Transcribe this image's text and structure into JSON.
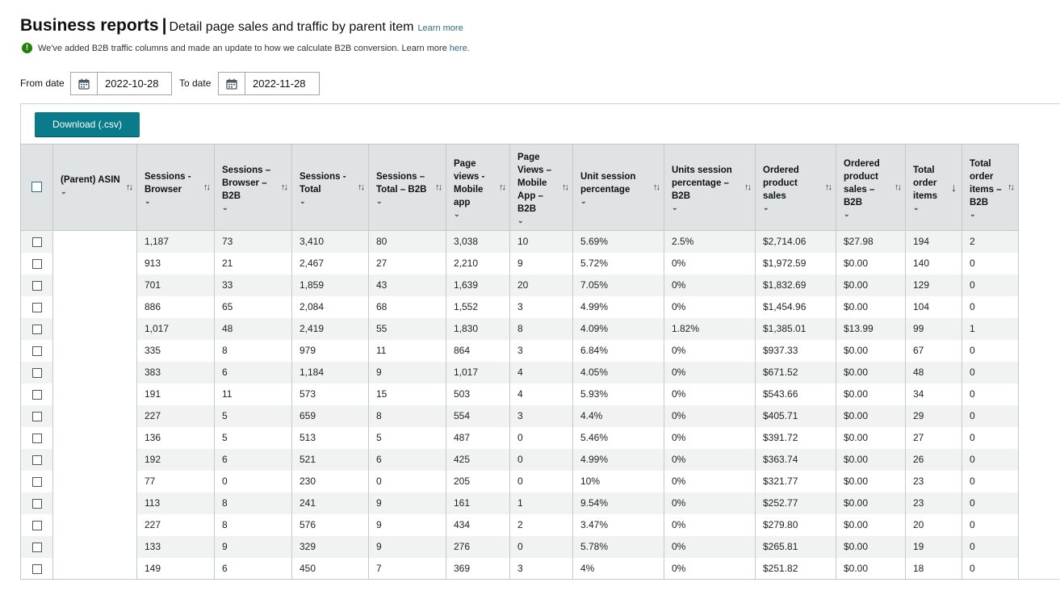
{
  "header": {
    "title": "Business reports",
    "separator": "|",
    "subtitle": "Detail page sales and traffic by parent item",
    "learn_more": "Learn more"
  },
  "notice": {
    "text": "We've added B2B traffic columns and made an update to how we calculate B2B conversion. Learn more",
    "link": "here."
  },
  "filters": {
    "from_label": "From date",
    "from_value": "2022-10-28",
    "to_label": "To date",
    "to_value": "2022-11-28"
  },
  "download_label": "Download (.csv)",
  "columns": [
    {
      "key": "asin",
      "line1": "(Parent) ASIN",
      "extra": []
    },
    {
      "key": "sessions_browser",
      "lines": [
        "Sessions -",
        "Browser"
      ]
    },
    {
      "key": "sessions_browser_b2b",
      "lines": [
        "Sessions –",
        "Browser –",
        "B2B"
      ]
    },
    {
      "key": "sessions_total",
      "lines": [
        "Sessions -",
        "Total"
      ]
    },
    {
      "key": "sessions_total_b2b",
      "lines": [
        "Sessions –",
        "Total – B2B"
      ]
    },
    {
      "key": "page_views_mobile",
      "lines": [
        "Page",
        "views -",
        "Mobile",
        "app"
      ]
    },
    {
      "key": "page_views_mobile_b2b",
      "lines": [
        "Page",
        "Views –",
        "Mobile",
        "App –",
        "B2B"
      ]
    },
    {
      "key": "unit_session_pct",
      "lines": [
        "Unit session",
        "percentage"
      ]
    },
    {
      "key": "unit_session_pct_b2b",
      "lines": [
        "Units session",
        "percentage –",
        "B2B"
      ]
    },
    {
      "key": "ordered_sales",
      "lines": [
        "Ordered",
        "product",
        "sales"
      ]
    },
    {
      "key": "ordered_sales_b2b",
      "lines": [
        "Ordered",
        "product",
        "sales –",
        "B2B"
      ]
    },
    {
      "key": "total_order_items",
      "lines": [
        "Total",
        "order",
        "items"
      ]
    },
    {
      "key": "total_order_items_b2b",
      "lines": [
        "Total",
        "order",
        "items –",
        "B2B"
      ]
    }
  ],
  "rows": [
    [
      "1,187",
      "73",
      "3,410",
      "80",
      "3,038",
      "10",
      "5.69%",
      "2.5%",
      "$2,714.06",
      "$27.98",
      "194",
      "2"
    ],
    [
      "913",
      "21",
      "2,467",
      "27",
      "2,210",
      "9",
      "5.72%",
      "0%",
      "$1,972.59",
      "$0.00",
      "140",
      "0"
    ],
    [
      "701",
      "33",
      "1,859",
      "43",
      "1,639",
      "20",
      "7.05%",
      "0%",
      "$1,832.69",
      "$0.00",
      "129",
      "0"
    ],
    [
      "886",
      "65",
      "2,084",
      "68",
      "1,552",
      "3",
      "4.99%",
      "0%",
      "$1,454.96",
      "$0.00",
      "104",
      "0"
    ],
    [
      "1,017",
      "48",
      "2,419",
      "55",
      "1,830",
      "8",
      "4.09%",
      "1.82%",
      "$1,385.01",
      "$13.99",
      "99",
      "1"
    ],
    [
      "335",
      "8",
      "979",
      "11",
      "864",
      "3",
      "6.84%",
      "0%",
      "$937.33",
      "$0.00",
      "67",
      "0"
    ],
    [
      "383",
      "6",
      "1,184",
      "9",
      "1,017",
      "4",
      "4.05%",
      "0%",
      "$671.52",
      "$0.00",
      "48",
      "0"
    ],
    [
      "191",
      "11",
      "573",
      "15",
      "503",
      "4",
      "5.93%",
      "0%",
      "$543.66",
      "$0.00",
      "34",
      "0"
    ],
    [
      "227",
      "5",
      "659",
      "8",
      "554",
      "3",
      "4.4%",
      "0%",
      "$405.71",
      "$0.00",
      "29",
      "0"
    ],
    [
      "136",
      "5",
      "513",
      "5",
      "487",
      "0",
      "5.46%",
      "0%",
      "$391.72",
      "$0.00",
      "27",
      "0"
    ],
    [
      "192",
      "6",
      "521",
      "6",
      "425",
      "0",
      "4.99%",
      "0%",
      "$363.74",
      "$0.00",
      "26",
      "0"
    ],
    [
      "77",
      "0",
      "230",
      "0",
      "205",
      "0",
      "10%",
      "0%",
      "$321.77",
      "$0.00",
      "23",
      "0"
    ],
    [
      "113",
      "8",
      "241",
      "9",
      "161",
      "1",
      "9.54%",
      "0%",
      "$252.77",
      "$0.00",
      "23",
      "0"
    ],
    [
      "227",
      "8",
      "576",
      "9",
      "434",
      "2",
      "3.47%",
      "0%",
      "$279.80",
      "$0.00",
      "20",
      "0"
    ],
    [
      "133",
      "9",
      "329",
      "9",
      "276",
      "0",
      "5.78%",
      "0%",
      "$265.81",
      "$0.00",
      "19",
      "0"
    ],
    [
      "149",
      "6",
      "450",
      "7",
      "369",
      "3",
      "4%",
      "0%",
      "$251.82",
      "$0.00",
      "18",
      "0"
    ]
  ],
  "icons": {
    "sort": "sort-arrows-icon",
    "sort_desc": "arrow-down-icon",
    "calendar": "calendar-icon",
    "notice": "info-circle-icon"
  },
  "colors": {
    "accent": "#0a7b8a",
    "link": "#2b6e80",
    "header_bg": "#dfe3e3",
    "success": "#1d8102"
  }
}
